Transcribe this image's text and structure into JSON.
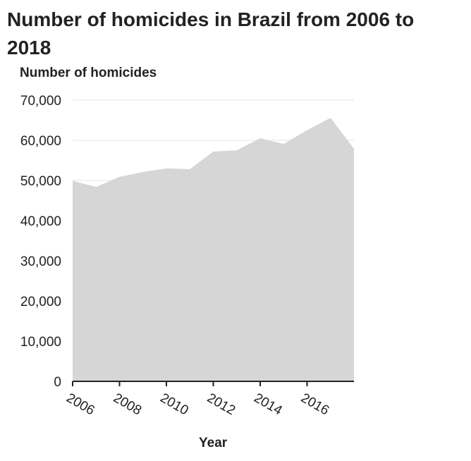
{
  "chart_data": {
    "type": "area",
    "title": "Number of homicides in Brazil from 2006 to 2018",
    "xlabel": "Year",
    "ylabel": "Number of homicides",
    "x": [
      2006,
      2007,
      2008,
      2009,
      2010,
      2011,
      2012,
      2013,
      2014,
      2015,
      2016,
      2017,
      2018
    ],
    "series": [
      {
        "values": [
          49900,
          48400,
          50900,
          52100,
          53000,
          52800,
          57200,
          57500,
          60500,
          59100,
          62500,
          65600,
          57900
        ]
      }
    ],
    "xlim": [
      2006,
      2018
    ],
    "ylim": [
      0,
      70000
    ],
    "x_ticks": [
      2006,
      2008,
      2010,
      2012,
      2014,
      2016
    ],
    "x_tick_labels": [
      "2006",
      "2008",
      "2010",
      "2012",
      "2014",
      "2016"
    ],
    "y_ticks": [
      0,
      10000,
      20000,
      30000,
      40000,
      50000,
      60000,
      70000
    ],
    "y_tick_labels": [
      "0",
      "10,000",
      "20,000",
      "30,000",
      "40,000",
      "50,000",
      "60,000",
      "70,000"
    ],
    "grid": "horizontal",
    "legend": "none",
    "colors": {
      "fill": "#d6d6d6",
      "gridline": "#e3e3e3",
      "axis": "#222222",
      "text": "#222222"
    }
  }
}
